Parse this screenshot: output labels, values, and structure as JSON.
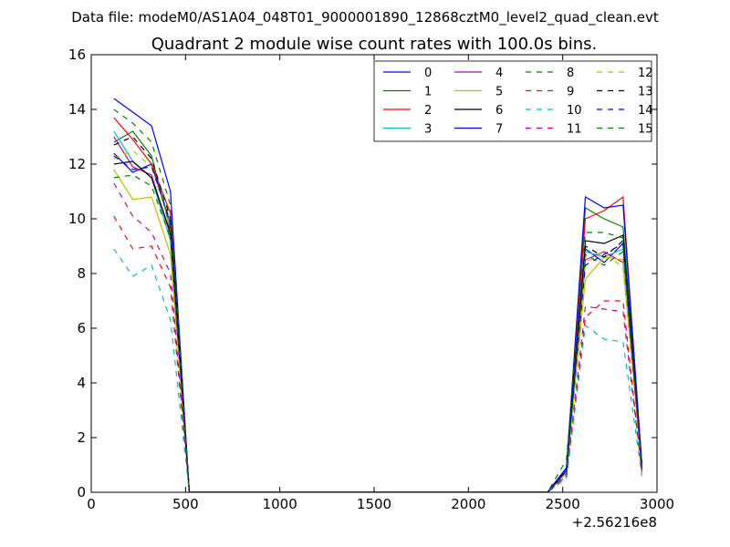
{
  "figure": {
    "suptitle": "Data file: modeM0/AS1A04_048T01_9000001890_12868cztM0_level2_quad_clean.evt"
  },
  "chart_data": {
    "type": "line",
    "title": "Quadrant 2 module wise count rates with 100.0s bins.",
    "xlabel": "",
    "ylabel": "",
    "x_offset_label": "+2.56216e8",
    "xlim": [
      0,
      3000
    ],
    "ylim": [
      0,
      16
    ],
    "xticks": [
      0,
      500,
      1000,
      1500,
      2000,
      2500,
      3000
    ],
    "xtick_labels": [
      "0",
      "500",
      "1000",
      "1500",
      "2000",
      "2500",
      "3000"
    ],
    "yticks": [
      0,
      2,
      4,
      6,
      8,
      10,
      12,
      14,
      16
    ],
    "ytick_labels": [
      "0",
      "2",
      "4",
      "6",
      "8",
      "10",
      "12",
      "14",
      "16"
    ],
    "grid": false,
    "legend_position": "top-right",
    "x": [
      120,
      220,
      320,
      420,
      520,
      620,
      720,
      820,
      920,
      1020,
      1120,
      1220,
      1320,
      1420,
      1520,
      1620,
      1720,
      1820,
      1920,
      2020,
      2120,
      2220,
      2320,
      2420,
      2520,
      2620,
      2720,
      2820,
      2920
    ],
    "series": [
      {
        "name": "0",
        "color": "#0000ff",
        "style": "solid",
        "values": [
          12.4,
          11.7,
          12.0,
          9.8,
          0,
          0,
          0,
          0,
          0,
          0,
          0,
          0,
          0,
          0,
          0,
          0,
          0,
          0,
          0,
          0,
          0,
          0,
          0,
          0,
          0.9,
          8.9,
          8.4,
          9.1,
          0.9
        ]
      },
      {
        "name": "1",
        "color": "#008000",
        "style": "solid",
        "values": [
          12.8,
          13.2,
          12.3,
          9.6,
          0,
          0,
          0,
          0,
          0,
          0,
          0,
          0,
          0,
          0,
          0,
          0,
          0,
          0,
          0,
          0,
          0,
          0,
          0,
          0,
          0.8,
          10.4,
          10.0,
          9.7,
          1.0
        ]
      },
      {
        "name": "2",
        "color": "#ff0000",
        "style": "solid",
        "values": [
          13.7,
          12.9,
          12.0,
          10.2,
          0,
          0,
          0,
          0,
          0,
          0,
          0,
          0,
          0,
          0,
          0,
          0,
          0,
          0,
          0,
          0,
          0,
          0,
          0,
          0,
          0.8,
          10.0,
          10.3,
          10.8,
          0.9
        ]
      },
      {
        "name": "3",
        "color": "#00bfbf",
        "style": "solid",
        "values": [
          13.2,
          12.1,
          11.5,
          9.2,
          0,
          0,
          0,
          0,
          0,
          0,
          0,
          0,
          0,
          0,
          0,
          0,
          0,
          0,
          0,
          0,
          0,
          0,
          0,
          0,
          0.7,
          8.8,
          8.6,
          8.9,
          0.8
        ]
      },
      {
        "name": "4",
        "color": "#bf00bf",
        "style": "solid",
        "values": [
          13.0,
          11.9,
          11.6,
          9.4,
          0,
          0,
          0,
          0,
          0,
          0,
          0,
          0,
          0,
          0,
          0,
          0,
          0,
          0,
          0,
          0,
          0,
          0,
          0,
          0,
          0.8,
          8.5,
          8.8,
          8.4,
          0.9
        ]
      },
      {
        "name": "5",
        "color": "#bfbf00",
        "style": "solid",
        "values": [
          11.8,
          10.7,
          10.8,
          8.7,
          0,
          0,
          0,
          0,
          0,
          0,
          0,
          0,
          0,
          0,
          0,
          0,
          0,
          0,
          0,
          0,
          0,
          0,
          0,
          0,
          0.7,
          7.8,
          8.6,
          8.5,
          0.8
        ]
      },
      {
        "name": "6",
        "color": "#000000",
        "style": "solid",
        "values": [
          12.0,
          12.1,
          11.5,
          9.5,
          0,
          0,
          0,
          0,
          0,
          0,
          0,
          0,
          0,
          0,
          0,
          0,
          0,
          0,
          0,
          0,
          0,
          0,
          0,
          0,
          0.8,
          9.2,
          9.1,
          9.4,
          0.9
        ]
      },
      {
        "name": "7",
        "color": "#0000ff",
        "style": "solid",
        "values": [
          14.4,
          13.9,
          13.4,
          11.0,
          0,
          0,
          0,
          0,
          0,
          0,
          0,
          0,
          0,
          0,
          0,
          0,
          0,
          0,
          0,
          0,
          0,
          0,
          0,
          0,
          0.9,
          10.8,
          10.4,
          10.5,
          1.0
        ]
      },
      {
        "name": "8",
        "color": "#008000",
        "style": "dashed",
        "values": [
          14.0,
          13.5,
          12.8,
          10.5,
          0,
          0,
          0,
          0,
          0,
          0,
          0,
          0,
          0,
          0,
          0,
          0,
          0,
          0,
          0,
          0,
          0,
          0,
          0,
          0,
          1.2,
          9.5,
          9.5,
          9.3,
          0.9
        ]
      },
      {
        "name": "9",
        "color": "#ff0000",
        "style": "dashed",
        "values": [
          10.1,
          8.9,
          9.0,
          7.5,
          0,
          0,
          0,
          0,
          0,
          0,
          0,
          0,
          0,
          0,
          0,
          0,
          0,
          0,
          0,
          0,
          0,
          0,
          0,
          0,
          0.6,
          6.4,
          7.0,
          7.0,
          0.7
        ]
      },
      {
        "name": "10",
        "color": "#00bfbf",
        "style": "dashed",
        "values": [
          8.9,
          7.9,
          8.3,
          6.3,
          0,
          0,
          0,
          0,
          0,
          0,
          0,
          0,
          0,
          0,
          0,
          0,
          0,
          0,
          0,
          0,
          0,
          0,
          0,
          0,
          0.5,
          6.1,
          5.6,
          5.5,
          0.6
        ]
      },
      {
        "name": "11",
        "color": "#bf00bf",
        "style": "dashed",
        "values": [
          11.3,
          10.1,
          9.5,
          8.0,
          0,
          0,
          0,
          0,
          0,
          0,
          0,
          0,
          0,
          0,
          0,
          0,
          0,
          0,
          0,
          0,
          0,
          0,
          0,
          0,
          0.6,
          6.8,
          6.7,
          6.6,
          0.7
        ]
      },
      {
        "name": "12",
        "color": "#bfbf00",
        "style": "dashed",
        "values": [
          12.2,
          12.5,
          11.9,
          9.7,
          0,
          0,
          0,
          0,
          0,
          0,
          0,
          0,
          0,
          0,
          0,
          0,
          0,
          0,
          0,
          0,
          0,
          0,
          0,
          0,
          0.7,
          8.4,
          8.8,
          8.2,
          0.8
        ]
      },
      {
        "name": "13",
        "color": "#000000",
        "style": "dashed",
        "values": [
          12.7,
          13.0,
          12.2,
          10.0,
          0,
          0,
          0,
          0,
          0,
          0,
          0,
          0,
          0,
          0,
          0,
          0,
          0,
          0,
          0,
          0,
          0,
          0,
          0,
          0,
          0.8,
          9.0,
          8.6,
          9.2,
          0.9
        ]
      },
      {
        "name": "14",
        "color": "#0000ff",
        "style": "dashed",
        "values": [
          12.3,
          11.8,
          11.9,
          9.9,
          0,
          0,
          0,
          0,
          0,
          0,
          0,
          0,
          0,
          0,
          0,
          0,
          0,
          0,
          0,
          0,
          0,
          0,
          0,
          0,
          0.8,
          8.3,
          8.7,
          9.1,
          0.9
        ]
      },
      {
        "name": "15",
        "color": "#008000",
        "style": "dashed",
        "values": [
          11.5,
          11.6,
          11.2,
          9.3,
          0,
          0,
          0,
          0,
          0,
          0,
          0,
          0,
          0,
          0,
          0,
          0,
          0,
          0,
          0,
          0,
          0,
          0,
          0,
          0,
          0.7,
          8.7,
          8.3,
          8.8,
          0.8
        ]
      }
    ]
  }
}
